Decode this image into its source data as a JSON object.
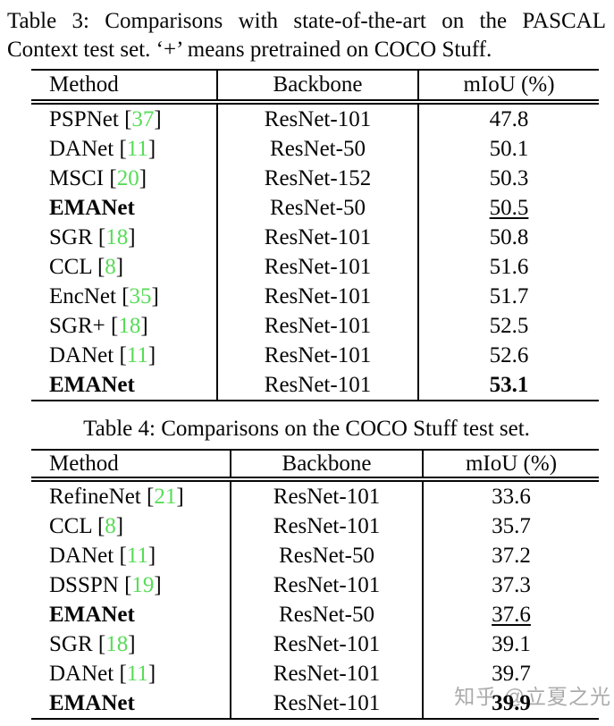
{
  "colors": {
    "citation_green": "#58DC58",
    "text_black": "#060606",
    "watermark_gray": "#ABABAB"
  },
  "watermark": {
    "text": "知乎 @立夏之光"
  },
  "table3": {
    "caption_line1": "Table 3: Comparisons with state-of-the-art on the PASCAL",
    "caption_line2": "Context test set. ‘+’ means pretrained on COCO Stuff.",
    "headers": [
      "Method",
      "Backbone",
      "mIoU (%)"
    ],
    "rows": [
      {
        "method": "PSPNet",
        "cite": "37",
        "backbone": "ResNet-101",
        "miou": "47.8",
        "method_bold": false,
        "miou_bold": false,
        "miou_underline": false
      },
      {
        "method": "DANet",
        "cite": "11",
        "backbone": "ResNet-50",
        "miou": "50.1",
        "method_bold": false,
        "miou_bold": false,
        "miou_underline": false
      },
      {
        "method": "MSCI",
        "cite": "20",
        "backbone": "ResNet-152",
        "miou": "50.3",
        "method_bold": false,
        "miou_bold": false,
        "miou_underline": false
      },
      {
        "method": "EMANet",
        "cite": null,
        "backbone": "ResNet-50",
        "miou": "50.5",
        "method_bold": true,
        "miou_bold": false,
        "miou_underline": true
      },
      {
        "method": "SGR",
        "cite": "18",
        "backbone": "ResNet-101",
        "miou": "50.8",
        "method_bold": false,
        "miou_bold": false,
        "miou_underline": false
      },
      {
        "method": "CCL",
        "cite": "8",
        "backbone": "ResNet-101",
        "miou": "51.6",
        "method_bold": false,
        "miou_bold": false,
        "miou_underline": false
      },
      {
        "method": "EncNet",
        "cite": "35",
        "backbone": "ResNet-101",
        "miou": "51.7",
        "method_bold": false,
        "miou_bold": false,
        "miou_underline": false
      },
      {
        "method": "SGR+",
        "cite": "18",
        "backbone": "ResNet-101",
        "miou": "52.5",
        "method_bold": false,
        "miou_bold": false,
        "miou_underline": false
      },
      {
        "method": "DANet",
        "cite": "11",
        "backbone": "ResNet-101",
        "miou": "52.6",
        "method_bold": false,
        "miou_bold": false,
        "miou_underline": false
      },
      {
        "method": "EMANet",
        "cite": null,
        "backbone": "ResNet-101",
        "miou": "53.1",
        "method_bold": true,
        "miou_bold": true,
        "miou_underline": false
      }
    ]
  },
  "table4": {
    "caption": "Table 4: Comparisons on the COCO Stuff test set.",
    "headers": [
      "Method",
      "Backbone",
      "mIoU (%)"
    ],
    "rows": [
      {
        "method": "RefineNet",
        "cite": "21",
        "backbone": "ResNet-101",
        "miou": "33.6",
        "method_bold": false,
        "miou_bold": false,
        "miou_underline": false
      },
      {
        "method": "CCL",
        "cite": "8",
        "backbone": "ResNet-101",
        "miou": "35.7",
        "method_bold": false,
        "miou_bold": false,
        "miou_underline": false
      },
      {
        "method": "DANet",
        "cite": "11",
        "backbone": "ResNet-50",
        "miou": "37.2",
        "method_bold": false,
        "miou_bold": false,
        "miou_underline": false
      },
      {
        "method": "DSSPN",
        "cite": "19",
        "backbone": "ResNet-101",
        "miou": "37.3",
        "method_bold": false,
        "miou_bold": false,
        "miou_underline": false
      },
      {
        "method": "EMANet",
        "cite": null,
        "backbone": "ResNet-50",
        "miou": "37.6",
        "method_bold": true,
        "miou_bold": false,
        "miou_underline": true
      },
      {
        "method": "SGR",
        "cite": "18",
        "backbone": "ResNet-101",
        "miou": "39.1",
        "method_bold": false,
        "miou_bold": false,
        "miou_underline": false
      },
      {
        "method": "DANet",
        "cite": "11",
        "backbone": "ResNet-101",
        "miou": "39.7",
        "method_bold": false,
        "miou_bold": false,
        "miou_underline": false
      },
      {
        "method": "EMANet",
        "cite": null,
        "backbone": "ResNet-101",
        "miou": "39.9",
        "method_bold": true,
        "miou_bold": true,
        "miou_underline": false
      }
    ]
  }
}
